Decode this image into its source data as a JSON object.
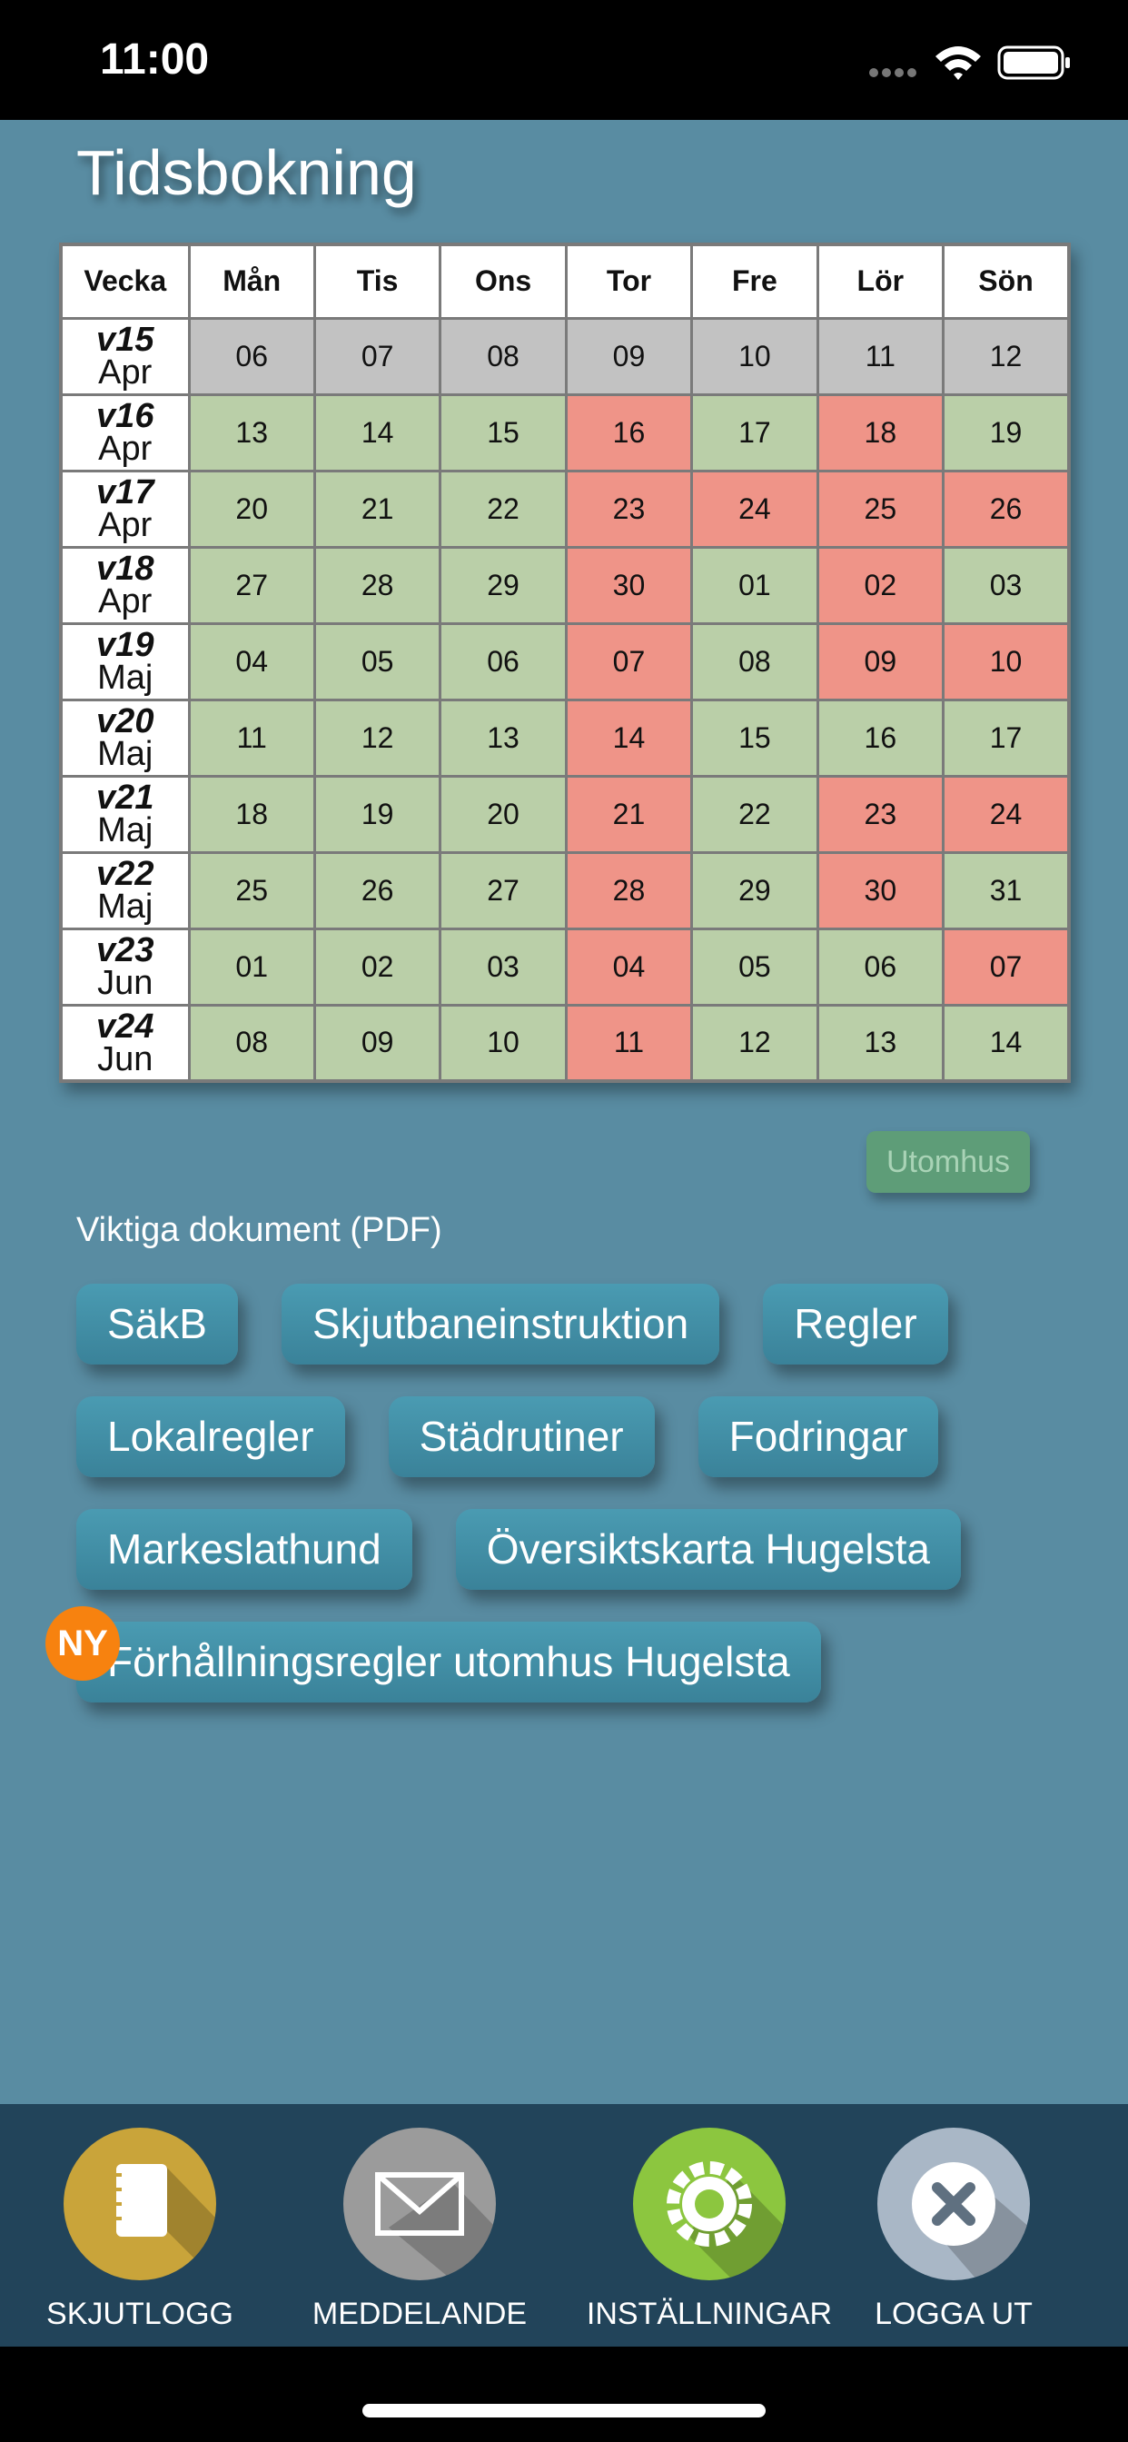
{
  "status_bar": {
    "time": "11:00"
  },
  "header": {
    "title": "Tidsbokning"
  },
  "calendar": {
    "headers": [
      "Vecka",
      "Mån",
      "Tis",
      "Ons",
      "Tor",
      "Fre",
      "Lör",
      "Sön"
    ],
    "rows": [
      {
        "week": "v15",
        "month": "Apr",
        "days": [
          "06",
          "07",
          "08",
          "09",
          "10",
          "11",
          "12"
        ],
        "colors": [
          "#c2c2c2",
          "#c2c2c2",
          "#c2c2c2",
          "#c2c2c2",
          "#c2c2c2",
          "#c2c2c2",
          "#c2c2c2"
        ]
      },
      {
        "week": "v16",
        "month": "Apr",
        "days": [
          "13",
          "14",
          "15",
          "16",
          "17",
          "18",
          "19"
        ],
        "colors": [
          "#bacfa8",
          "#bacfa8",
          "#bacfa8",
          "#ef9488",
          "#bacfa8",
          "#ef9488",
          "#bacfa8"
        ]
      },
      {
        "week": "v17",
        "month": "Apr",
        "days": [
          "20",
          "21",
          "22",
          "23",
          "24",
          "25",
          "26"
        ],
        "colors": [
          "#bacfa8",
          "#bacfa8",
          "#bacfa8",
          "#ef9488",
          "#ef9488",
          "#ef9488",
          "#ef9488"
        ]
      },
      {
        "week": "v18",
        "month": "Apr",
        "days": [
          "27",
          "28",
          "29",
          "30",
          "01",
          "02",
          "03"
        ],
        "colors": [
          "#bacfa8",
          "#bacfa8",
          "#bacfa8",
          "#ef9488",
          "#bacfa8",
          "#ef9488",
          "#bacfa8"
        ]
      },
      {
        "week": "v19",
        "month": "Maj",
        "days": [
          "04",
          "05",
          "06",
          "07",
          "08",
          "09",
          "10"
        ],
        "colors": [
          "#bacfa8",
          "#bacfa8",
          "#bacfa8",
          "#ef9488",
          "#bacfa8",
          "#ef9488",
          "#ef9488"
        ]
      },
      {
        "week": "v20",
        "month": "Maj",
        "days": [
          "11",
          "12",
          "13",
          "14",
          "15",
          "16",
          "17"
        ],
        "colors": [
          "#bacfa8",
          "#bacfa8",
          "#bacfa8",
          "#ef9488",
          "#bacfa8",
          "#bacfa8",
          "#bacfa8"
        ]
      },
      {
        "week": "v21",
        "month": "Maj",
        "days": [
          "18",
          "19",
          "20",
          "21",
          "22",
          "23",
          "24"
        ],
        "colors": [
          "#bacfa8",
          "#bacfa8",
          "#bacfa8",
          "#ef9488",
          "#bacfa8",
          "#ef9488",
          "#ef9488"
        ]
      },
      {
        "week": "v22",
        "month": "Maj",
        "days": [
          "25",
          "26",
          "27",
          "28",
          "29",
          "30",
          "31"
        ],
        "colors": [
          "#bacfa8",
          "#bacfa8",
          "#bacfa8",
          "#ef9488",
          "#bacfa8",
          "#ef9488",
          "#bacfa8"
        ]
      },
      {
        "week": "v23",
        "month": "Jun",
        "days": [
          "01",
          "02",
          "03",
          "04",
          "05",
          "06",
          "07"
        ],
        "colors": [
          "#bacfa8",
          "#bacfa8",
          "#bacfa8",
          "#ef9488",
          "#bacfa8",
          "#bacfa8",
          "#ef9488"
        ]
      },
      {
        "week": "v24",
        "month": "Jun",
        "days": [
          "08",
          "09",
          "10",
          "11",
          "12",
          "13",
          "14"
        ],
        "colors": [
          "#bacfa8",
          "#bacfa8",
          "#bacfa8",
          "#ef9488",
          "#bacfa8",
          "#bacfa8",
          "#bacfa8"
        ]
      }
    ]
  },
  "legend_button": {
    "label": "Utomhus"
  },
  "documents": {
    "title": "Viktiga dokument (PDF)",
    "items": [
      {
        "label": "SäkB"
      },
      {
        "label": "Skjutbaneinstruktion"
      },
      {
        "label": "Regler"
      },
      {
        "label": "Lokalregler"
      },
      {
        "label": "Städrutiner"
      },
      {
        "label": "Fodringar"
      },
      {
        "label": "Markeslathund"
      },
      {
        "label": "Översiktskarta Hugelsta"
      },
      {
        "label": "Förhållningsregler utomhus Hugelsta",
        "badge": "NY"
      }
    ]
  },
  "tab_bar": {
    "items": [
      {
        "label": "SKJUTLOGG",
        "color": "#c9a43a"
      },
      {
        "label": "MEDDELANDE",
        "color": "#9b9b9b"
      },
      {
        "label": "INSTÄLLNINGAR",
        "color": "#8cc63f"
      },
      {
        "label": "LOGGA UT",
        "color": "#a9b7c6"
      }
    ]
  }
}
